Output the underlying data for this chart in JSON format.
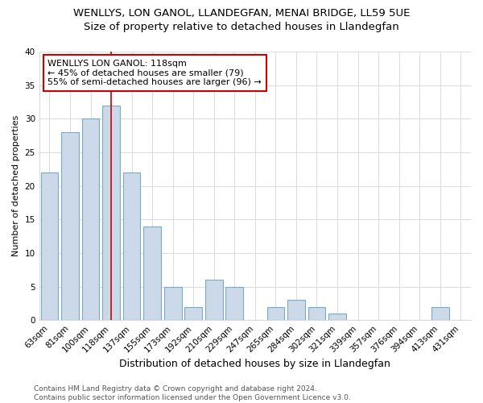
{
  "title": "WENLLYS, LON GANOL, LLANDEGFAN, MENAI BRIDGE, LL59 5UE",
  "subtitle": "Size of property relative to detached houses in Llandegfan",
  "xlabel": "Distribution of detached houses by size in Llandegfan",
  "ylabel": "Number of detached properties",
  "categories": [
    "63sqm",
    "81sqm",
    "100sqm",
    "118sqm",
    "137sqm",
    "155sqm",
    "173sqm",
    "192sqm",
    "210sqm",
    "229sqm",
    "247sqm",
    "265sqm",
    "284sqm",
    "302sqm",
    "321sqm",
    "339sqm",
    "357sqm",
    "376sqm",
    "394sqm",
    "413sqm",
    "431sqm"
  ],
  "values": [
    22,
    28,
    30,
    32,
    22,
    14,
    5,
    2,
    6,
    5,
    0,
    2,
    3,
    2,
    1,
    0,
    0,
    0,
    0,
    2,
    0
  ],
  "bar_color": "#ccd9e8",
  "bar_edge_color": "#7aaac8",
  "vline_x_index": 3,
  "vline_color": "#cc0000",
  "annotation_text": "WENLLYS LON GANOL: 118sqm\n← 45% of detached houses are smaller (79)\n55% of semi-detached houses are larger (96) →",
  "annotation_box_edge_color": "#cc0000",
  "ylim": [
    0,
    40
  ],
  "yticks": [
    0,
    5,
    10,
    15,
    20,
    25,
    30,
    35,
    40
  ],
  "footer_text": "Contains HM Land Registry data © Crown copyright and database right 2024.\nContains public sector information licensed under the Open Government Licence v3.0.",
  "bg_color": "#ffffff",
  "plot_bg_color": "#ffffff",
  "grid_color": "#dddddd",
  "title_fontsize": 9.5,
  "subtitle_fontsize": 9.5,
  "xlabel_fontsize": 9,
  "ylabel_fontsize": 8,
  "tick_fontsize": 7.5,
  "annotation_fontsize": 8,
  "footer_fontsize": 6.5
}
